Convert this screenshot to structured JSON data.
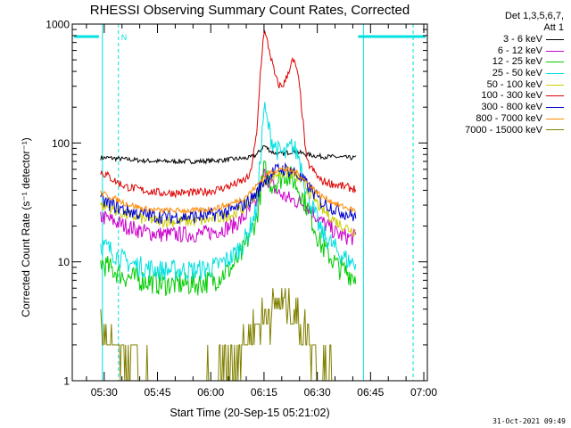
{
  "chart_data": {
    "type": "line",
    "title": "RHESSI Observing Summary Count Rates, Corrected",
    "xlabel": "Start Time (20-Sep-15 05:21:02)",
    "ylabel": "Corrected Count Rate (s⁻¹ detector⁻¹)",
    "yscale": "log",
    "ylim": [
      1,
      1000
    ],
    "xlim_minutes_after_0521": [
      0,
      100
    ],
    "xtick_labels": [
      "05:30",
      "05:45",
      "06:00",
      "06:15",
      "06:30",
      "06:45",
      "07:00"
    ],
    "xtick_minutes": [
      9,
      24,
      39,
      54,
      69,
      84,
      99
    ],
    "ytick_labels": [
      "1",
      "10",
      "100",
      "1000"
    ],
    "ytick_values": [
      1,
      10,
      100,
      1000
    ],
    "legend_header": [
      "Det 1,3,5,6,7,",
      "Att 1"
    ],
    "markers": {
      "data_gaps_minutes": [
        [
          0,
          8
        ],
        [
          80,
          100
        ]
      ],
      "saa_label": "N",
      "night_line_minutes": [
        8.5,
        82
      ],
      "dashed_minutes": [
        13,
        96
      ]
    },
    "series": [
      {
        "name": "3 - 6 keV",
        "color": "#000000",
        "times": [
          8,
          10,
          15,
          20,
          25,
          30,
          35,
          40,
          45,
          48,
          50,
          52,
          54,
          56,
          58,
          60,
          62,
          64,
          66,
          70,
          75,
          78,
          80
        ],
        "values": [
          75,
          75,
          73,
          71,
          70,
          70,
          70,
          71,
          73,
          74,
          75,
          80,
          95,
          85,
          80,
          82,
          85,
          83,
          80,
          77,
          76,
          75,
          75
        ]
      },
      {
        "name": "6 - 12 keV",
        "color": "#cc00cc",
        "times": [
          8,
          10,
          15,
          20,
          25,
          30,
          35,
          40,
          45,
          48,
          50,
          52,
          54,
          56,
          58,
          60,
          62,
          64,
          66,
          70,
          75,
          78,
          80
        ],
        "values": [
          24,
          23,
          20,
          18,
          17,
          17,
          17,
          18,
          20,
          23,
          27,
          32,
          55,
          45,
          38,
          35,
          33,
          32,
          30,
          22,
          17,
          16,
          16
        ]
      },
      {
        "name": "12 - 25 keV",
        "color": "#00cc00",
        "times": [
          8,
          10,
          15,
          20,
          25,
          30,
          35,
          40,
          45,
          48,
          50,
          52,
          54,
          56,
          58,
          60,
          62,
          64,
          66,
          70,
          75,
          78,
          80
        ],
        "values": [
          10,
          9,
          7.5,
          7,
          6.5,
          6.5,
          6.5,
          7,
          9,
          12,
          17,
          24,
          60,
          45,
          48,
          55,
          50,
          40,
          30,
          14,
          9,
          8,
          7.5
        ]
      },
      {
        "name": "25 - 50 keV",
        "color": "#00e0e0",
        "times": [
          8,
          10,
          15,
          20,
          25,
          30,
          35,
          40,
          45,
          48,
          50,
          52,
          54,
          56,
          58,
          60,
          62,
          64,
          66,
          70,
          75,
          78,
          80
        ],
        "values": [
          14,
          13,
          10,
          9,
          8.5,
          8.5,
          8.5,
          9,
          11,
          14,
          19,
          28,
          200,
          110,
          85,
          80,
          95,
          75,
          40,
          18,
          12,
          10,
          10
        ]
      },
      {
        "name": "50 - 100 keV",
        "color": "#cccc00",
        "times": [
          8,
          10,
          15,
          20,
          25,
          30,
          35,
          40,
          45,
          48,
          50,
          52,
          54,
          56,
          58,
          60,
          62,
          64,
          66,
          70,
          75,
          78,
          80
        ],
        "values": [
          30,
          29,
          25,
          23,
          22,
          22,
          22,
          23,
          25,
          28,
          32,
          38,
          48,
          52,
          55,
          57,
          55,
          50,
          42,
          28,
          21,
          19,
          18
        ]
      },
      {
        "name": "100 - 300 keV",
        "color": "#dd0000",
        "times": [
          8,
          10,
          12,
          15,
          20,
          25,
          30,
          35,
          40,
          45,
          48,
          50,
          52,
          53,
          54,
          55,
          56,
          57,
          58,
          59,
          60,
          61,
          62,
          63,
          64,
          65,
          66,
          70,
          75,
          78,
          80
        ],
        "values": [
          57,
          53,
          48,
          43,
          40,
          38,
          38,
          38,
          40,
          44,
          48,
          52,
          120,
          400,
          880,
          700,
          520,
          380,
          310,
          300,
          330,
          410,
          490,
          450,
          300,
          150,
          70,
          48,
          44,
          42,
          41
        ]
      },
      {
        "name": "300 - 800 keV",
        "color": "#0000cc",
        "times": [
          8,
          10,
          15,
          20,
          25,
          30,
          35,
          40,
          45,
          48,
          50,
          52,
          54,
          56,
          58,
          60,
          62,
          64,
          66,
          70,
          75,
          78,
          80
        ],
        "values": [
          33,
          31,
          27,
          25,
          24,
          24,
          24,
          25,
          27,
          30,
          33,
          38,
          48,
          55,
          60,
          60,
          58,
          52,
          45,
          32,
          27,
          25,
          24
        ]
      },
      {
        "name": "800 - 7000 keV",
        "color": "#ff8800",
        "times": [
          8,
          10,
          15,
          20,
          25,
          30,
          35,
          40,
          45,
          48,
          50,
          52,
          54,
          56,
          58,
          60,
          62,
          64,
          66,
          70,
          75,
          78,
          80
        ],
        "values": [
          38,
          36,
          31,
          28,
          27,
          27,
          27,
          28,
          31,
          34,
          38,
          44,
          52,
          57,
          60,
          60,
          58,
          54,
          47,
          36,
          30,
          28,
          27
        ]
      },
      {
        "name": "7000 - 15000 keV",
        "color": "#808000",
        "times": [
          8,
          10,
          15,
          20,
          25,
          30,
          35,
          40,
          45,
          48,
          50,
          52,
          54,
          56,
          58,
          60,
          62,
          64,
          66,
          70,
          75
        ],
        "values": [
          3,
          2,
          1.5,
          1.2,
          1,
          1,
          1,
          1.2,
          1.6,
          2,
          2.4,
          3,
          3.6,
          4,
          4.3,
          4.4,
          4,
          3.4,
          2.5,
          1.4,
          1
        ]
      }
    ]
  },
  "footer": {
    "date": "31-Oct-2021 09:49"
  }
}
